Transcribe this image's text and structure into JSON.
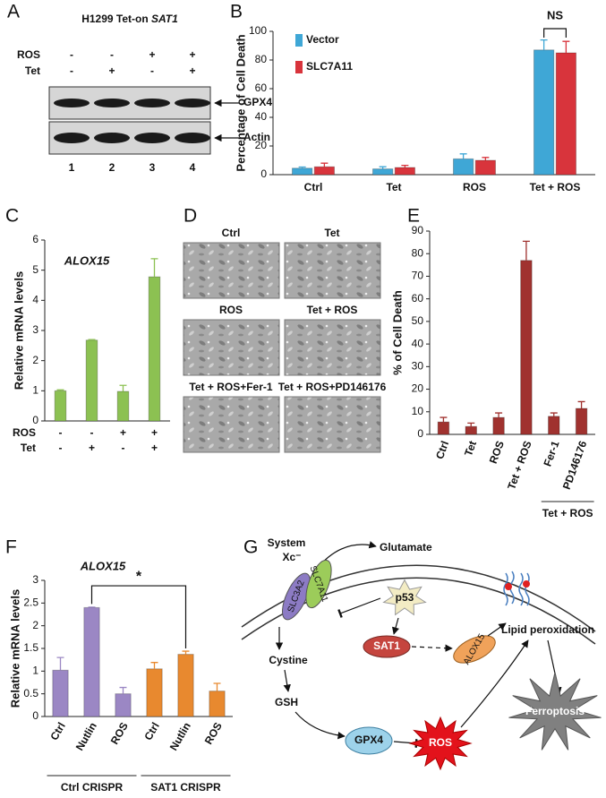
{
  "panel_labels": [
    "A",
    "B",
    "C",
    "D",
    "E",
    "F",
    "G"
  ],
  "blot": {
    "title": "H1299 Tet-on",
    "title_gene": "SAT1",
    "conditions": [
      {
        "label": "ROS",
        "signs": [
          "-",
          "-",
          "+",
          "+"
        ]
      },
      {
        "label": "Tet",
        "signs": [
          "-",
          "+",
          "-",
          "+"
        ]
      }
    ],
    "bands": [
      "GPX4",
      "Actin"
    ],
    "lanes": [
      1,
      2,
      3,
      4
    ]
  },
  "chart_data": [
    {
      "type": "bar",
      "ylabel": "Percentage of Cell Death",
      "categories": [
        "Ctrl",
        "Tet",
        "ROS",
        "Tet + ROS"
      ],
      "series": [
        {
          "name": "Vector",
          "color": "#3fa7d6",
          "values": [
            4.5,
            4,
            11,
            87
          ],
          "errors": [
            0.8,
            1.5,
            3.5,
            7
          ]
        },
        {
          "name": "SLC7A11",
          "color": "#d8343c",
          "values": [
            5.5,
            5,
            10,
            85
          ],
          "errors": [
            2.5,
            1.5,
            2,
            8
          ]
        }
      ],
      "ylim": [
        0,
        100
      ],
      "yticks": [
        0,
        20,
        40,
        60,
        80,
        100
      ],
      "annotation": "NS"
    },
    {
      "type": "bar",
      "title": "ALOX15",
      "ylabel": "Relative mRNA levels",
      "values": [
        1,
        2.68,
        0.98,
        4.78
      ],
      "errors": [
        0.03,
        0.02,
        0.2,
        0.6
      ],
      "color": "#8cc152",
      "ylim": [
        0,
        6
      ],
      "yticks": [
        0,
        1,
        2,
        3,
        4,
        5,
        6
      ],
      "conditions": [
        {
          "label": "ROS",
          "signs": [
            "-",
            "-",
            "+",
            "+"
          ]
        },
        {
          "label": "Tet",
          "signs": [
            "-",
            "+",
            "-",
            "+"
          ]
        }
      ]
    },
    {
      "type": "bar",
      "ylabel": "% of Cell Death",
      "categories": [
        "Ctrl",
        "Tet",
        "ROS",
        "Tet + ROS",
        "Fer-1",
        "PD146176"
      ],
      "values": [
        5.5,
        3.5,
        7.5,
        77,
        8,
        11.5
      ],
      "errors": [
        2,
        1.5,
        2,
        8.5,
        1.5,
        3
      ],
      "color": "#a0322f",
      "ylim": [
        0,
        90
      ],
      "yticks": [
        0,
        10,
        20,
        30,
        40,
        50,
        60,
        70,
        80,
        90
      ],
      "group_label": "Tet + ROS"
    },
    {
      "type": "bar",
      "title": "ALOX15",
      "ylabel": "Relative mRNA levels",
      "categories": [
        "Ctrl",
        "Nutlin",
        "ROS",
        "Ctrl",
        "Nutlin",
        "ROS"
      ],
      "values": [
        1.02,
        2.4,
        0.5,
        1.05,
        1.37,
        0.56
      ],
      "errors": [
        0.28,
        0.01,
        0.14,
        0.14,
        0.07,
        0.17
      ],
      "colors": [
        "#9b87c4",
        "#9b87c4",
        "#9b87c4",
        "#e8892f",
        "#e8892f",
        "#e8892f"
      ],
      "ylim": [
        0,
        3
      ],
      "yticks": [
        0,
        0.5,
        1,
        1.5,
        2,
        2.5,
        3
      ],
      "groups": [
        "Ctrl CRISPR",
        "SAT1 CRISPR"
      ],
      "annotation": "*"
    }
  ],
  "micrographs": {
    "labels": [
      "Ctrl",
      "Tet",
      "ROS",
      "Tet + ROS",
      "Tet + ROS+Fer-1",
      "Tet + ROS+PD146176"
    ]
  },
  "diagram": {
    "glutamate": "Glutamate",
    "system": "System",
    "xc": "Xc⁻",
    "slc7a11": "SLC7A11",
    "slc3a2": "SLC3A2",
    "p53": "p53",
    "sat1": "SAT1",
    "alox15": "ALOX15",
    "lipid": "Lipid peroxidation",
    "cystine": "Cystine",
    "gsh": "GSH",
    "gpx4": "GPX4",
    "ros": "ROS",
    "ferroptosis": "Ferroptosis"
  }
}
